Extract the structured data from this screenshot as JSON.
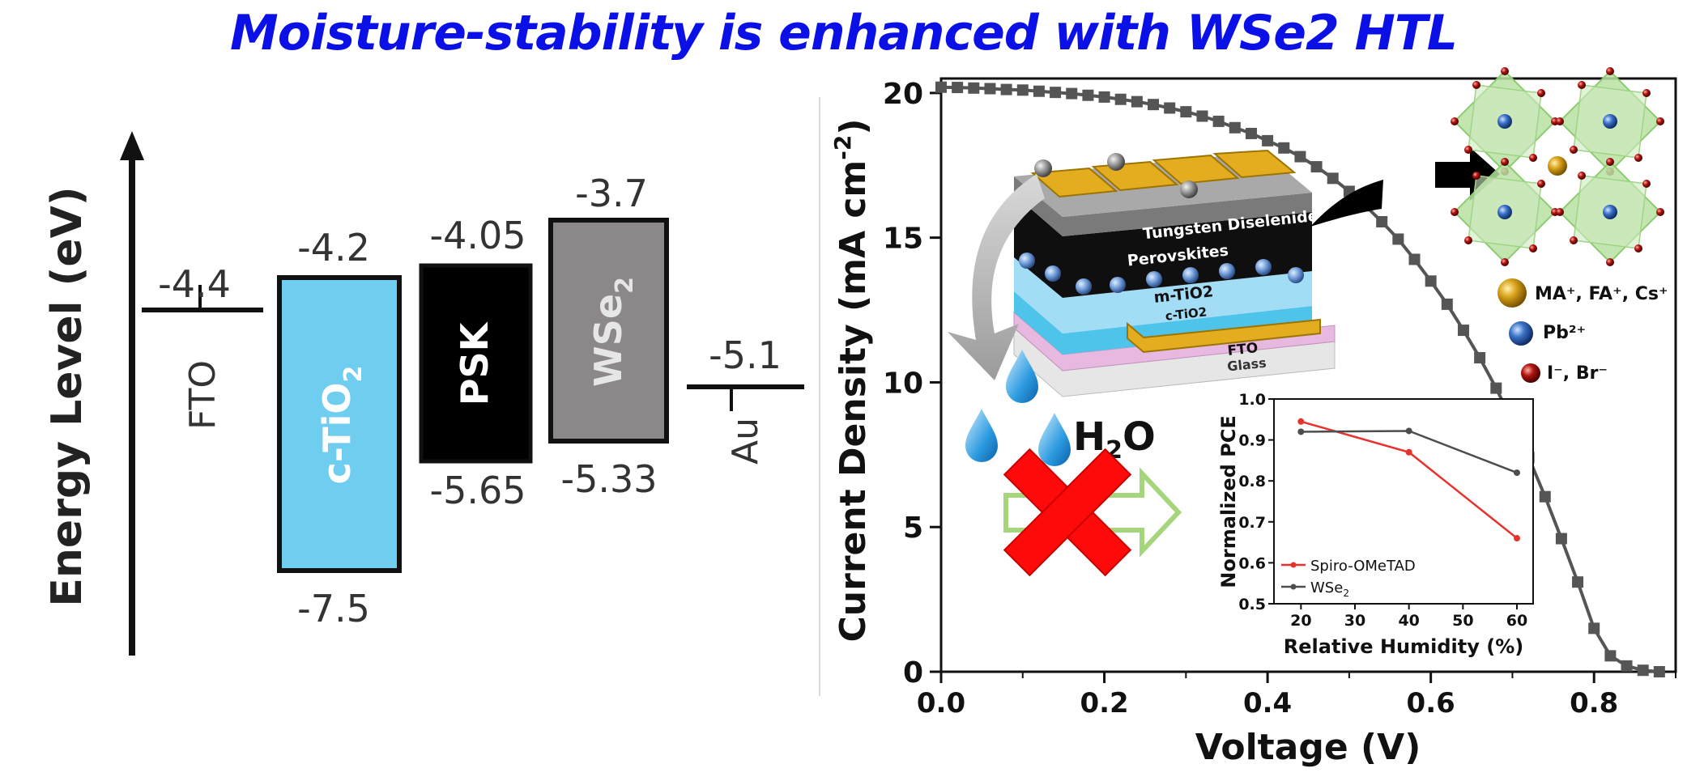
{
  "title": "Moisture-stability is enhanced with WSe2 HTL",
  "colors": {
    "title": "#0a10e6",
    "ctio2": "#6fcdf0",
    "psk": "#000000",
    "wse2": "#8c8889",
    "jv_curve": "#555555",
    "spiro": "#e8322c",
    "wse2_line": "#4d4d4d",
    "cross": "#ff0a0a",
    "arrow": "#a6d67c",
    "gold": "#d9a21b"
  },
  "energy_diagram": {
    "ylabel": "Energy Level (eV)",
    "levels": [
      {
        "name": "FTO",
        "value": "-4.4"
      },
      {
        "name": "Au",
        "value": "-5.1"
      }
    ],
    "bands": [
      {
        "name": "c-TiO",
        "sub": "2",
        "top": "-4.2",
        "bottom": "-7.5"
      },
      {
        "name": "PSK",
        "sub": "",
        "top": "-4.05",
        "bottom": "-5.65"
      },
      {
        "name": "WSe",
        "sub": "2",
        "top": "-3.7",
        "bottom": "-5.33"
      }
    ]
  },
  "device": {
    "layers": [
      "Tungsten Diselenide",
      "Perovskites",
      "m-TiO2",
      "c-TiO2",
      "FTO",
      "Glass"
    ],
    "water": {
      "main": "H",
      "sub": "2",
      "tail": "O"
    }
  },
  "legend_ions": [
    {
      "label": "MA⁺, FA⁺, Cs⁺",
      "icon": "gold-sphere-icon"
    },
    {
      "label": "Pb²⁺",
      "icon": "blue-sphere-icon"
    },
    {
      "label": "I⁻, Br⁻",
      "icon": "red-sphere-icon"
    }
  ],
  "chart_data": [
    {
      "type": "line",
      "xlabel": "Voltage (V)",
      "ylabel_main": "Current Density (mA cm",
      "ylabel_sup": "-2",
      "ylabel_tail": ")",
      "xlim": [
        0,
        0.9
      ],
      "ylim": [
        0,
        20.5
      ],
      "xticks": [
        "0.0",
        "0.2",
        "0.4",
        "0.6",
        "0.8"
      ],
      "yticks": [
        "0",
        "5",
        "10",
        "15",
        "20"
      ],
      "series": [
        {
          "x": [
            0.0,
            0.02,
            0.04,
            0.06,
            0.08,
            0.1,
            0.12,
            0.14,
            0.16,
            0.18,
            0.2,
            0.22,
            0.24,
            0.26,
            0.28,
            0.3,
            0.32,
            0.34,
            0.36,
            0.38,
            0.4,
            0.42,
            0.44,
            0.46,
            0.48,
            0.5,
            0.52,
            0.54,
            0.56,
            0.58,
            0.6,
            0.62,
            0.64,
            0.66,
            0.68,
            0.7,
            0.72,
            0.74,
            0.76,
            0.78,
            0.8,
            0.82,
            0.84,
            0.86,
            0.88
          ],
          "y": [
            20.2,
            20.19,
            20.17,
            20.15,
            20.12,
            20.1,
            20.06,
            20.02,
            19.98,
            19.92,
            19.86,
            19.78,
            19.7,
            19.6,
            19.48,
            19.35,
            19.2,
            19.02,
            18.8,
            18.6,
            18.35,
            18.1,
            17.8,
            17.45,
            17.05,
            16.6,
            16.1,
            15.55,
            14.95,
            14.25,
            13.5,
            12.7,
            11.8,
            10.85,
            9.8,
            8.65,
            7.4,
            6.05,
            4.6,
            3.1,
            1.5,
            0.55,
            0.2,
            0.05,
            0.0
          ]
        }
      ]
    },
    {
      "type": "line",
      "xlabel": "Relative Humidity (%)",
      "ylabel": "Normalized PCE",
      "xlim": [
        15,
        63
      ],
      "ylim": [
        0.5,
        1.0
      ],
      "xticks": [
        "20",
        "30",
        "40",
        "50",
        "60"
      ],
      "yticks": [
        "0.5",
        "0.6",
        "0.7",
        "0.8",
        "0.9",
        "1.0"
      ],
      "legend_position": "bottom-left",
      "series": [
        {
          "name": "Spiro-OMeTAD",
          "x": [
            20,
            40,
            60
          ],
          "y": [
            0.945,
            0.87,
            0.66
          ]
        },
        {
          "name": "WSe",
          "name_sub": "2",
          "x": [
            20,
            40,
            60
          ],
          "y": [
            0.92,
            0.922,
            0.82
          ]
        }
      ]
    }
  ]
}
